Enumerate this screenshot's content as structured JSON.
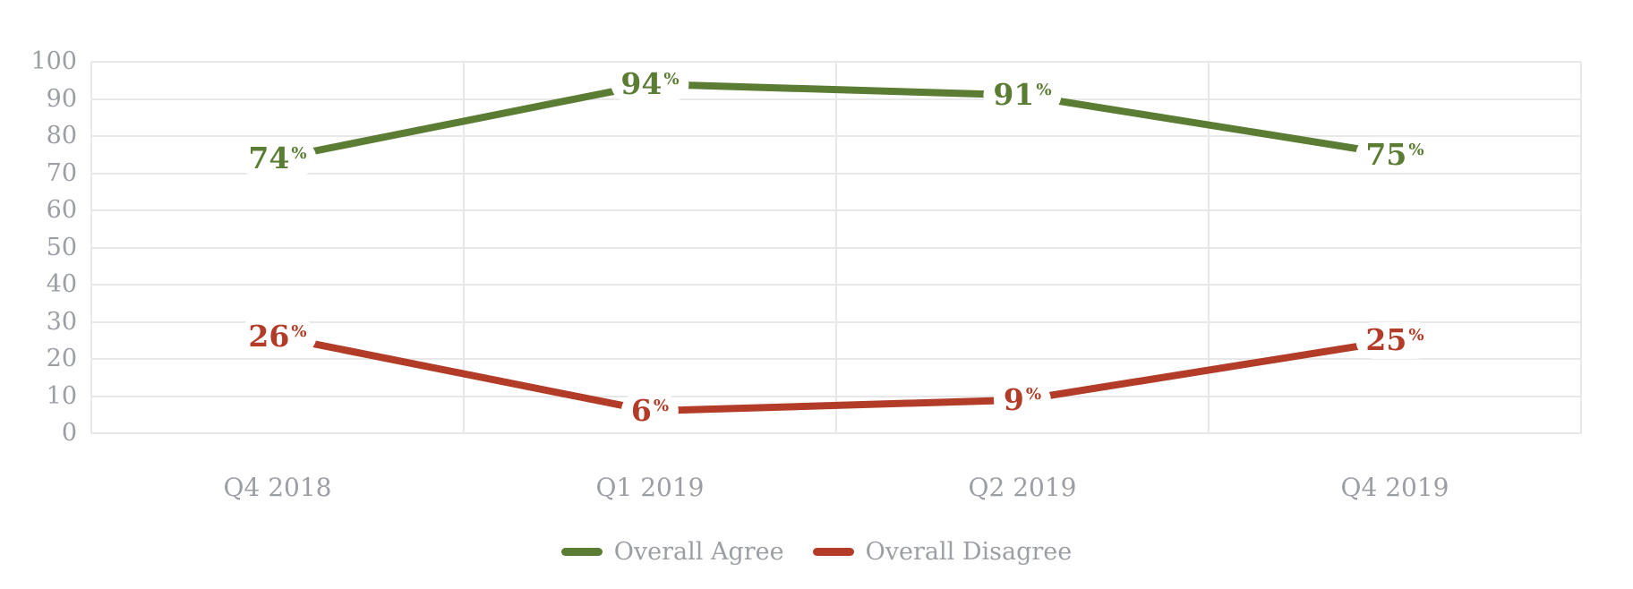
{
  "chart_data": {
    "type": "line",
    "title": "",
    "xlabel": "",
    "ylabel": "",
    "categories": [
      "Q4 2018",
      "Q1 2019",
      "Q2 2019",
      "Q4 2019"
    ],
    "series": [
      {
        "name": "Overall Agree",
        "color": "#5a7c33",
        "values": [
          74,
          94,
          91,
          75
        ]
      },
      {
        "name": "Overall Disagree",
        "color": "#b23c28",
        "values": [
          26,
          6,
          9,
          25
        ]
      }
    ],
    "value_suffix": "%",
    "ylim": [
      0,
      100
    ],
    "yticks": [
      0,
      10,
      20,
      30,
      40,
      50,
      60,
      70,
      80,
      90,
      100
    ],
    "grid": {
      "horizontal": true,
      "vertical": "category-band-boundaries"
    },
    "legend": {
      "position": "bottom"
    },
    "colors": {
      "axis_text": "#9b9ea3",
      "gridline": "#e8e8e8",
      "background": "#ffffff"
    }
  }
}
